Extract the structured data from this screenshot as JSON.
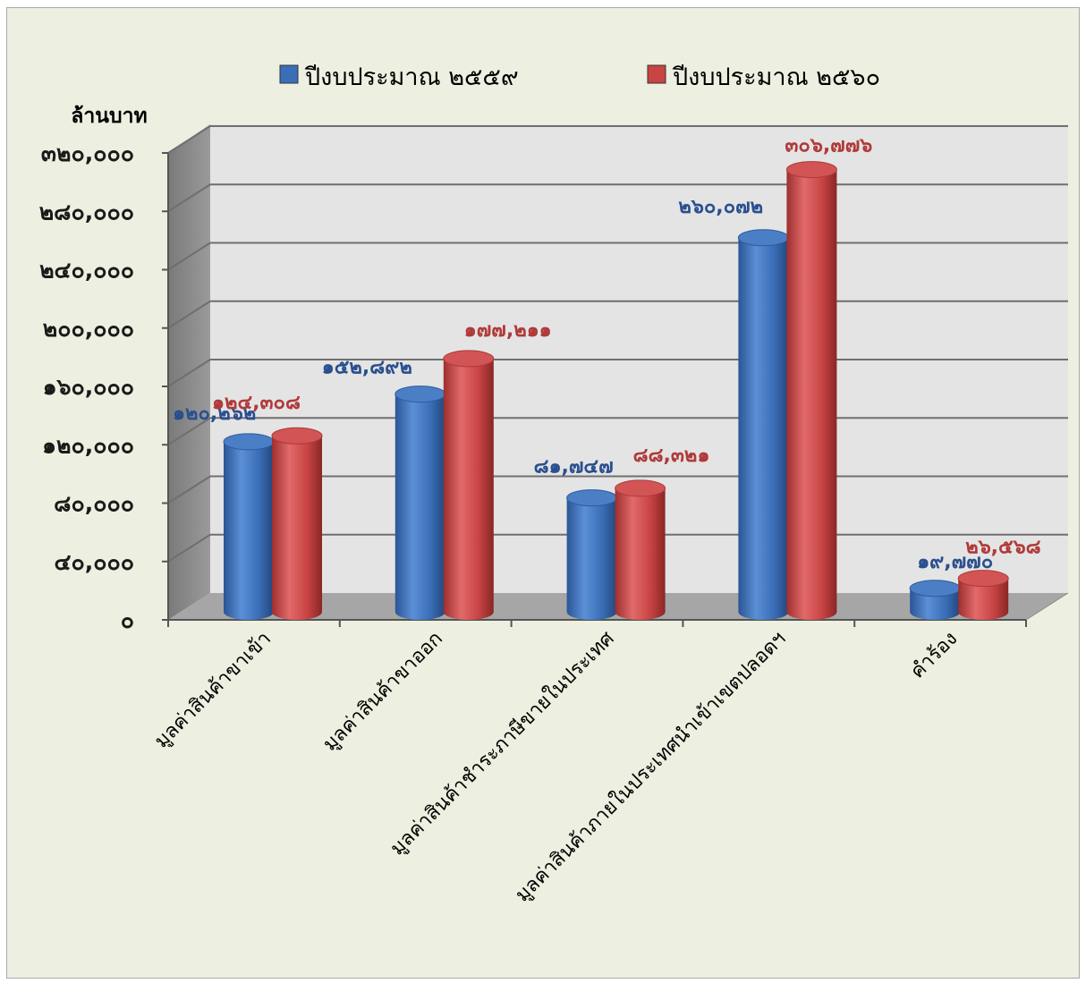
{
  "chart_data": {
    "type": "bar",
    "y_unit_label": "ล้านบาท",
    "categories": [
      "มูลค่าสินค้าขาเข้า",
      "มูลค่าสินค้าขาออก",
      "มูลค่าสินค้าชำระภาษีขายในประเทศ",
      "มูลค่าสินค้าภายในประเทศนำเข้าเขตปลอดฯ",
      "คำร้อง"
    ],
    "series": [
      {
        "name": "ปีงบประมาณ ๒๕๕๙",
        "color": "#3a6fb8",
        "values": [
          120262,
          152892,
          81747,
          260072,
          19770
        ],
        "labels": [
          "๑๒๐,๒๖๒",
          "๑๕๒,๘๙๒",
          "๘๑,๗๔๗",
          "๒๖๐,๐๗๒",
          "๑๙,๗๗๐"
        ],
        "label_color": "#2a4f8f"
      },
      {
        "name": "ปีงบประมาณ ๒๕๖๐",
        "color": "#c94444",
        "values": [
          124308,
          177211,
          88321,
          306776,
          26568
        ],
        "labels": [
          "๑๒๔,๓๐๘",
          "๑๗๗,๒๑๑",
          "๘๘,๓๒๑",
          "๓๐๖,๗๗๖",
          "๒๖,๕๖๘"
        ],
        "label_color": "#b03a3a"
      }
    ],
    "ylim": [
      0,
      320000
    ],
    "y_ticks": [
      0,
      40000,
      80000,
      120000,
      160000,
      200000,
      240000,
      280000,
      320000
    ],
    "y_tick_labels": [
      "๐",
      "๔๐,๐๐๐",
      "๘๐,๐๐๐",
      "๑๒๐,๐๐๐",
      "๑๖๐,๐๐๐",
      "๒๐๐,๐๐๐",
      "๒๔๐,๐๐๐",
      "๒๘๐,๐๐๐",
      "๓๒๐,๐๐๐"
    ],
    "grid": true,
    "legend_position": "top",
    "style": "3d-cylinder"
  }
}
